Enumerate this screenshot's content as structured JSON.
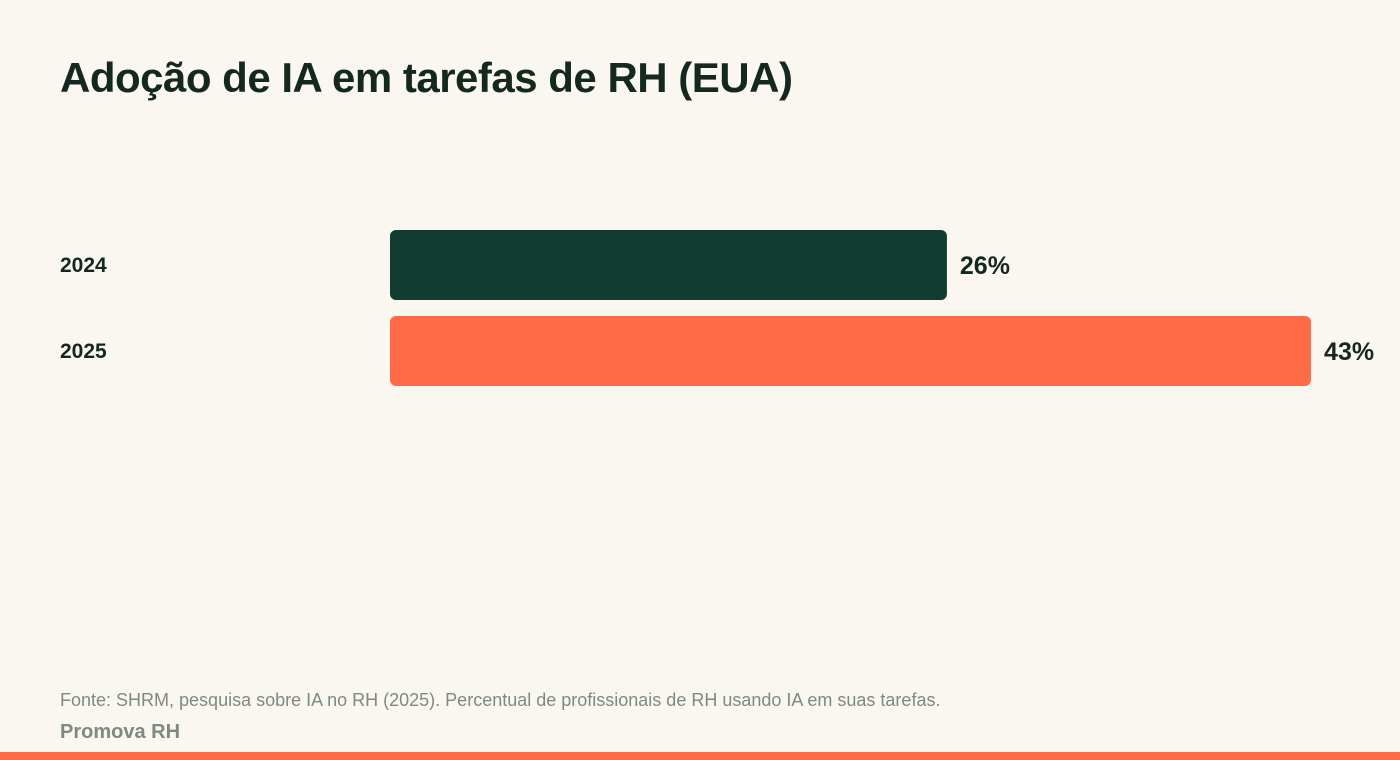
{
  "title": "Adoção de IA em tarefas de RH (EUA)",
  "footer": {
    "source": "Fonte: SHRM, pesquisa sobre IA no RH (2025). Percentual de profissionais de RH usando IA em suas tarefas.",
    "brand": "Promova RH"
  },
  "colors": {
    "background": "#faf7f0",
    "text": "#14281f",
    "muted": "#7d8a82",
    "accent": "#ff6b47"
  },
  "chart_data": {
    "type": "bar",
    "orientation": "horizontal",
    "title": "Adoção de IA em tarefas de RH (EUA)",
    "categories": [
      "2024",
      "2025"
    ],
    "values": [
      26,
      43
    ],
    "value_labels": [
      "26%",
      "43%"
    ],
    "unit": "%",
    "colors": [
      "#123b31",
      "#ff6b47"
    ],
    "grid": false,
    "legend": "none"
  }
}
